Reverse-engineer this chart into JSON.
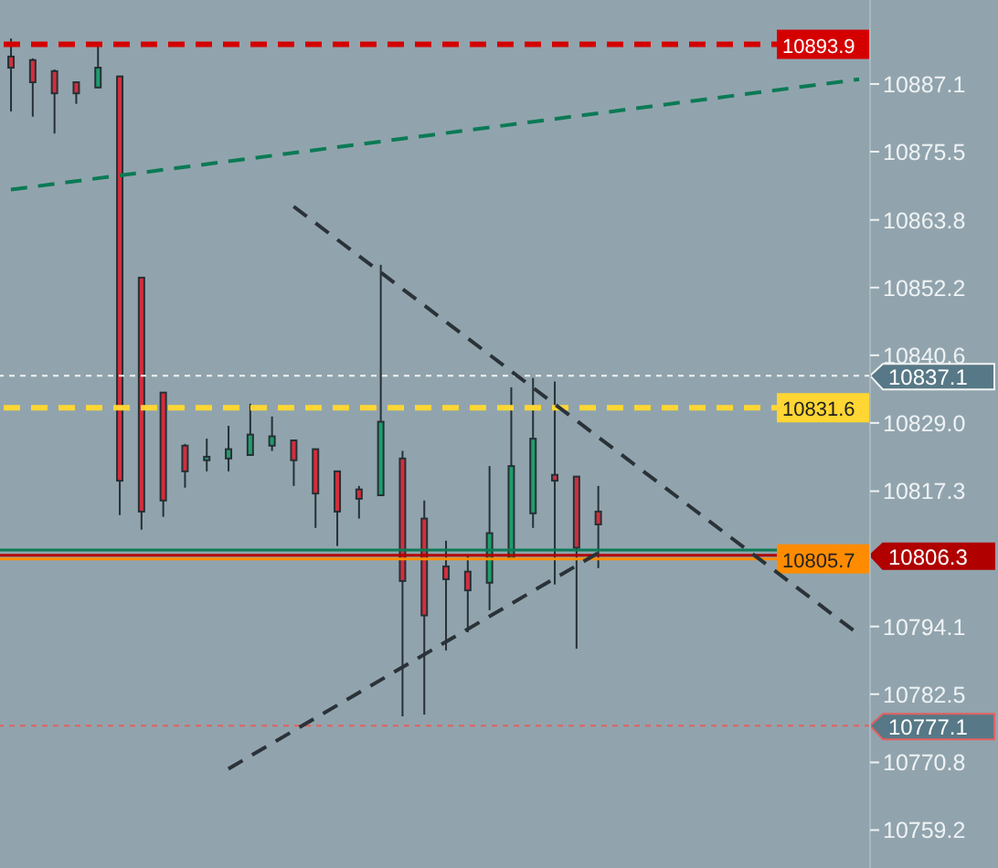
{
  "chart_data": {
    "type": "candlestick",
    "categories": [
      null,
      null,
      null,
      null,
      null,
      null,
      null,
      null,
      null,
      null,
      null,
      null,
      null,
      null,
      null,
      null,
      null,
      null,
      null,
      null,
      null,
      null,
      null,
      null,
      null,
      null,
      null,
      null,
      null,
      null,
      null,
      null,
      null,
      null,
      null,
      null,
      null,
      null,
      null,
      null
    ],
    "ohlc": [
      [
        10891.8,
        10894.9,
        10882.4,
        10889.9
      ],
      [
        10891.2,
        10891.5,
        10881.5,
        10887.4
      ],
      [
        10889.3,
        10889.6,
        10878.6,
        10885.5
      ],
      [
        10887.4,
        10887.4,
        10883.7,
        10885.5
      ],
      [
        10886.5,
        10894.3,
        10886.5,
        10889.9
      ],
      [
        10888.4,
        10888.4,
        10813.2,
        10819.1
      ],
      [
        10853.9,
        10853.9,
        10810.7,
        10813.8
      ],
      [
        10834.2,
        10834.2,
        10812.9,
        10815.7
      ],
      [
        10825.1,
        10825.4,
        10817.9,
        10820.7
      ],
      [
        10822.6,
        10826.3,
        10820.7,
        10823.2
      ],
      [
        10822.9,
        10828.5,
        10820.7,
        10824.5
      ],
      [
        10823.5,
        10832.3,
        10823.5,
        10827.0
      ],
      [
        10825.1,
        10830.1,
        10824.2,
        10826.7
      ],
      [
        10826.0,
        10826.0,
        10818.2,
        10822.6
      ],
      [
        10824.5,
        10824.5,
        10811.0,
        10816.9
      ],
      [
        10820.7,
        10820.7,
        10807.9,
        10813.8
      ],
      [
        10817.6,
        10818.2,
        10812.6,
        10816.0
      ],
      [
        10816.6,
        10856.1,
        10816.6,
        10829.2
      ],
      [
        10822.9,
        10824.2,
        10778.7,
        10801.9
      ],
      [
        10812.6,
        10815.7,
        10779.0,
        10796.0
      ],
      [
        10804.4,
        10808.8,
        10790.0,
        10802.2
      ],
      [
        10803.5,
        10806.3,
        10793.1,
        10800.3
      ],
      [
        10801.6,
        10821.6,
        10796.9,
        10810.1
      ],
      [
        10805.7,
        10835.1,
        10805.7,
        10821.6
      ],
      [
        10813.5,
        10836.7,
        10811.0,
        10826.3
      ],
      [
        10820.1,
        10836.1,
        10801.3,
        10819.1
      ],
      [
        10819.8,
        10819.8,
        10790.3,
        10807.6
      ],
      [
        10813.8,
        10818.2,
        10804.1,
        10811.6
      ],
      null,
      null,
      null,
      null,
      null,
      null,
      null,
      null,
      null,
      null,
      null,
      null
    ],
    "colors": [
      "#d22f3d",
      "#d22f3d",
      "#d22f3d",
      "#d22f3d",
      "#1f9d6b",
      "#d22f3d",
      "#d22f3d",
      "#d22f3d",
      "#d22f3d",
      "#1f9d6b",
      "#1f9d6b",
      "#1f9d6b",
      "#1f9d6b",
      "#d22f3d",
      "#d22f3d",
      "#d22f3d",
      "#d22f3d",
      "#1f9d6b",
      "#d22f3d",
      "#d22f3d",
      "#d22f3d",
      "#d22f3d",
      "#1f9d6b",
      "#1f9d6b",
      "#1f9d6b",
      "#d22f3d",
      "#d22f3d",
      "#d22f3d",
      null,
      null,
      null,
      null,
      null,
      null,
      null,
      null,
      null,
      null,
      null,
      null
    ],
    "series": [
      {
        "type": "line",
        "color": "#0b7a55",
        "line_style": "dashed",
        "values": [
          10869.0,
          null,
          null,
          null,
          null,
          null,
          null,
          null,
          null,
          null,
          null,
          null,
          null,
          null,
          null,
          null,
          null,
          null,
          null,
          null,
          null,
          null,
          null,
          null,
          null,
          null,
          null,
          null,
          null,
          null,
          null,
          null,
          null,
          null,
          null,
          null,
          null,
          null,
          null,
          10887.9
        ]
      },
      {
        "type": "line",
        "color": "#2a3238",
        "line_style": "dashed",
        "values": [
          null,
          null,
          null,
          null,
          null,
          null,
          null,
          null,
          null,
          null,
          null,
          null,
          null,
          10866.1,
          null,
          null,
          null,
          null,
          null,
          null,
          null,
          null,
          null,
          null,
          null,
          null,
          null,
          null,
          null,
          null,
          null,
          null,
          null,
          null,
          null,
          null,
          null,
          null,
          null,
          10792.7
        ]
      },
      {
        "type": "line",
        "color": "#2a3238",
        "line_style": "dashed",
        "values": [
          null,
          null,
          null,
          null,
          null,
          null,
          null,
          null,
          null,
          null,
          10769.7,
          null,
          null,
          null,
          null,
          null,
          null,
          null,
          null,
          null,
          null,
          null,
          null,
          null,
          null,
          null,
          null,
          10806.7,
          null,
          null,
          null,
          null,
          null,
          null,
          null,
          null,
          null,
          null,
          null,
          null
        ]
      }
    ],
    "ylim": [
      10752.7,
      10901.5
    ],
    "yticks": [
      10759.2,
      10770.8,
      10782.5,
      10794.1,
      10817.3,
      {
        "value": 10829,
        "label": "10829.0"
      },
      10840.6,
      10852.2,
      10863.8,
      10875.5,
      10887.1
    ],
    "tick_labels": "y",
    "ref_lines": [
      {
        "axis": "y",
        "value": 10893.9,
        "label": "10893.9",
        "color": "#d40000",
        "line_style": "dashed"
      },
      {
        "axis": "y",
        "value": 10837.1,
        "label": "10837.1",
        "color": "#f2f2f2",
        "line_style": "dotted"
      },
      {
        "axis": "y",
        "value": 10831.6,
        "label": "10831.6",
        "color": "#ffd633",
        "line_style": "dashed"
      },
      {
        "axis": "y",
        "value": 10807.2,
        "color": "#0b7a55",
        "line_style": "solid"
      },
      {
        "axis": "y",
        "value": 10806.3,
        "label": "10806.3",
        "color": "#b00000",
        "line_style": "solid"
      },
      {
        "axis": "y",
        "value": 10805.7,
        "label": "10805.7",
        "color": "#ff8c00",
        "line_style": "solid"
      },
      {
        "axis": "y",
        "value": 10777.1,
        "label": "10777.1",
        "color": "#e26060",
        "line_style": "dotted"
      }
    ],
    "grid": false,
    "legend": false
  }
}
